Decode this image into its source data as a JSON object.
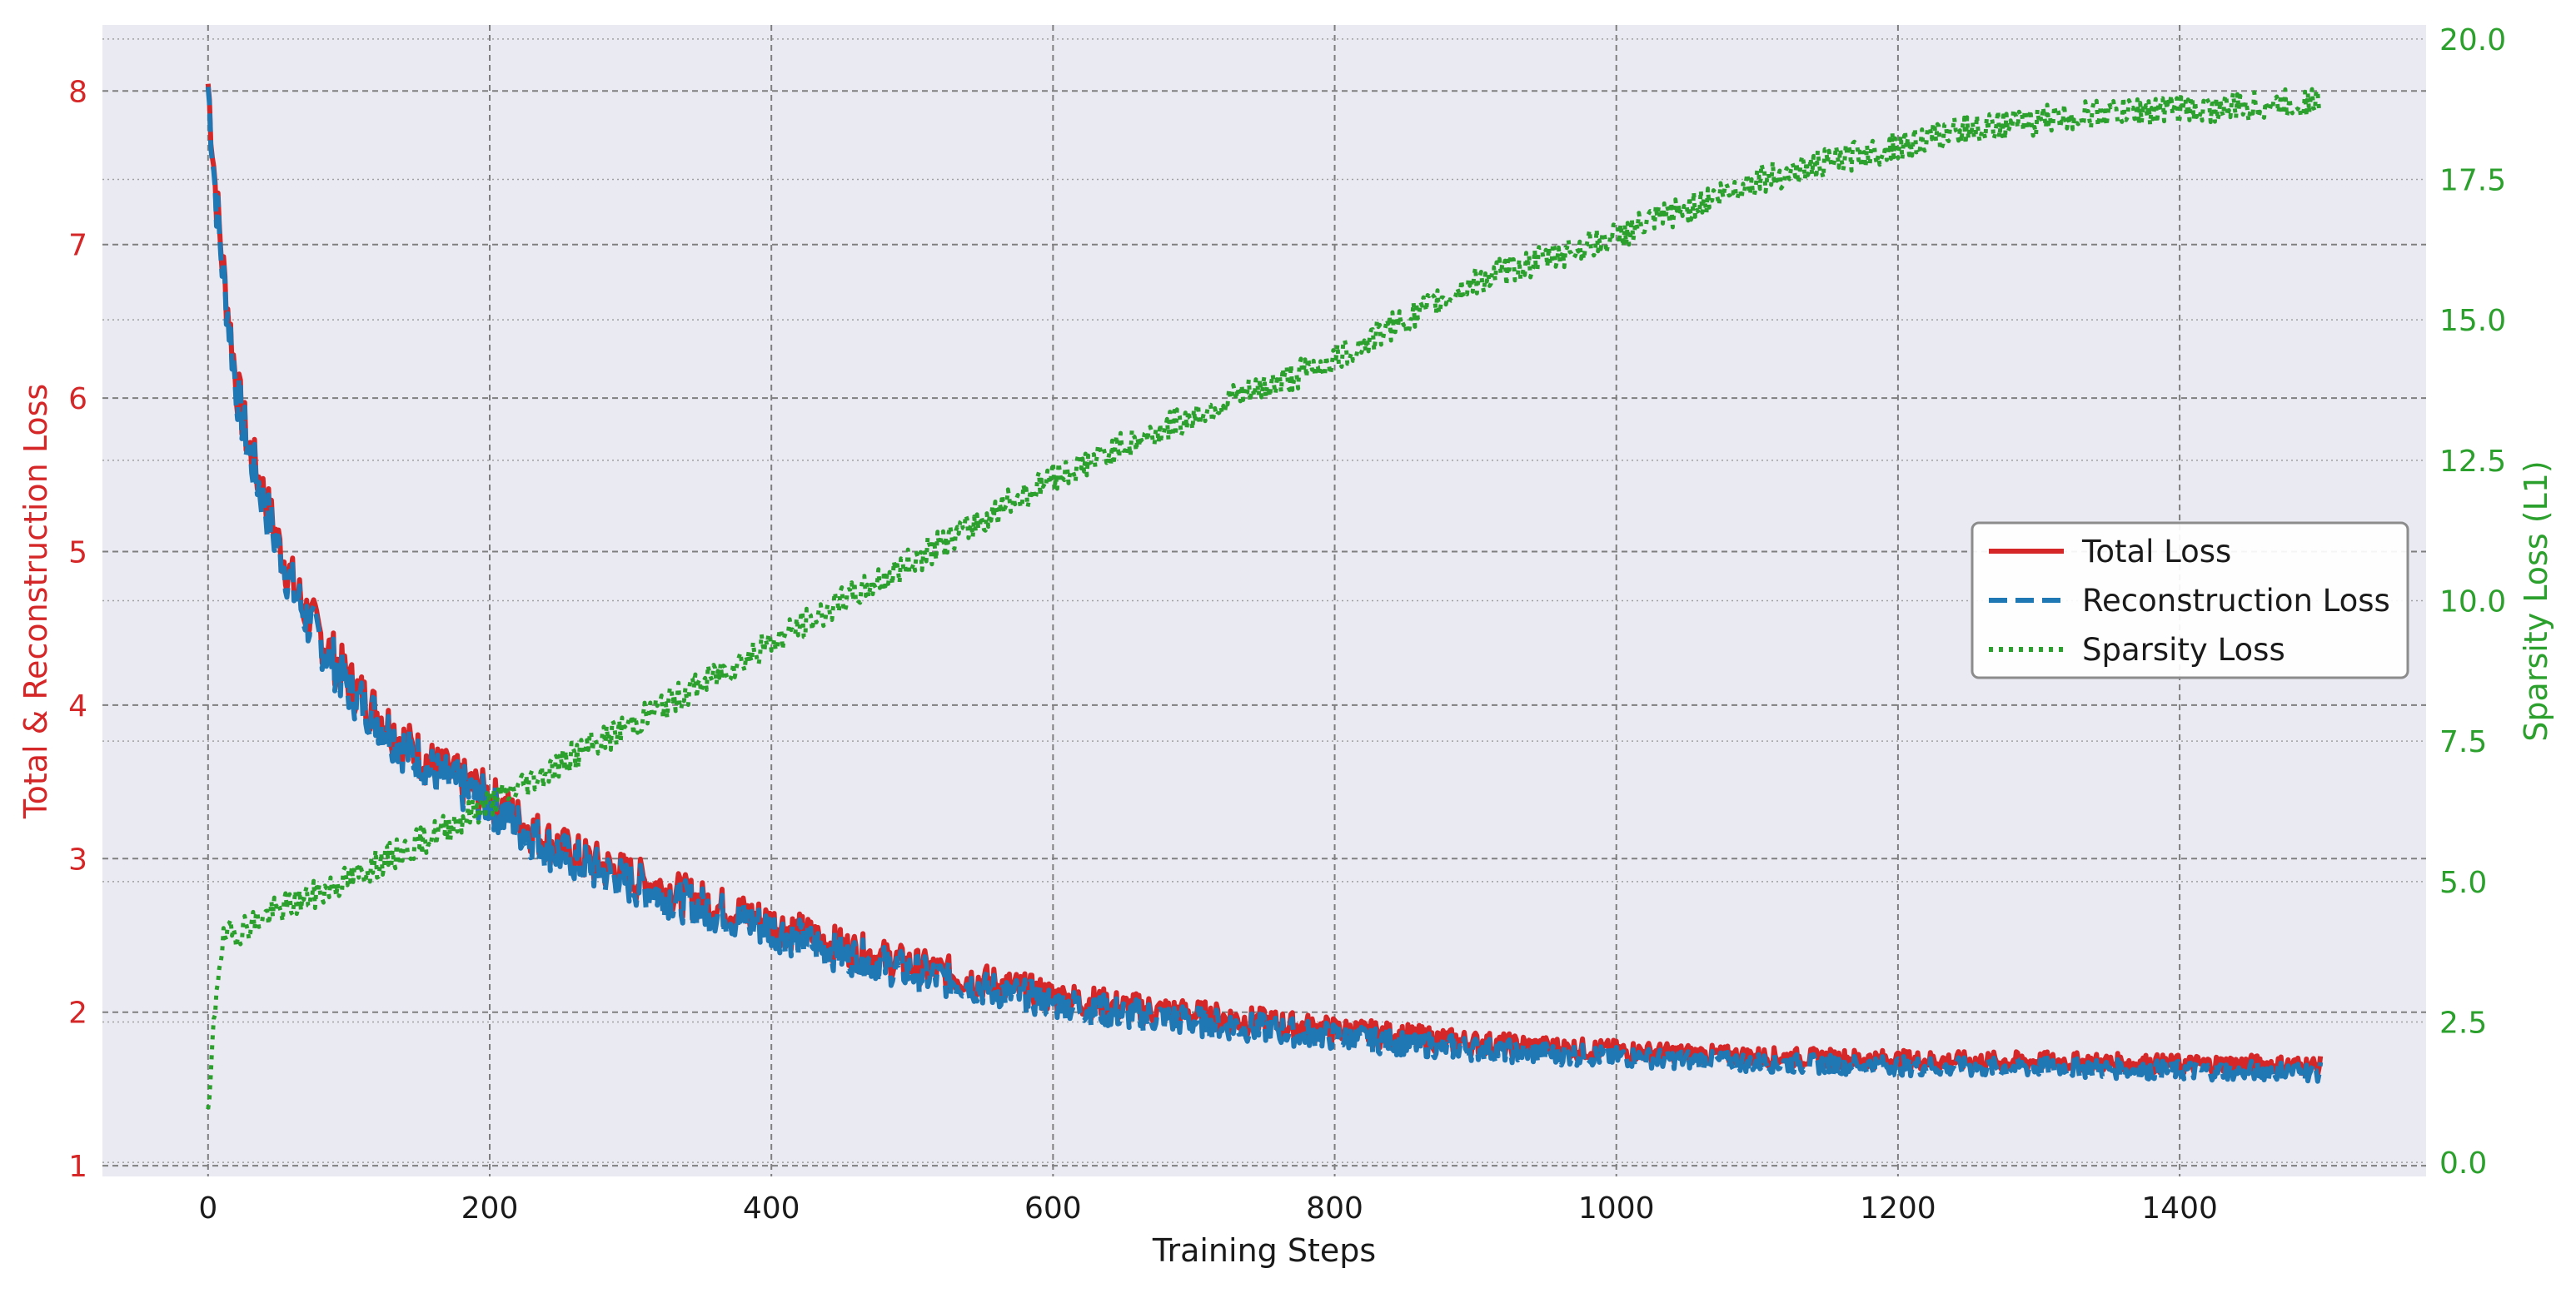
{
  "chart_data": {
    "type": "line",
    "xlabel": "Training Steps",
    "ylabel_left": "Total & Reconstruction Loss",
    "ylabel_right": "Sparsity Loss (L1)",
    "xlim": [
      -75,
      1575
    ],
    "ylim_left": [
      0.93,
      8.43
    ],
    "ylim_right": [
      -0.25,
      20.25
    ],
    "x_ticks": [
      0,
      200,
      400,
      600,
      800,
      1000,
      1200,
      1400
    ],
    "y_left_ticks": [
      1,
      2,
      3,
      4,
      5,
      6,
      7,
      8
    ],
    "y_right_ticks": [
      "0.0",
      "2.5",
      "5.0",
      "7.5",
      "10.0",
      "12.5",
      "15.0",
      "17.5",
      "20.0"
    ],
    "grid": true,
    "legend_position": "center-right",
    "left_axis_color": "#d62728",
    "right_axis_color": "#2ca02c",
    "series": [
      {
        "name": "Total Loss",
        "axis": "left",
        "color": "#d62728",
        "style": "solid",
        "x": [
          0,
          5,
          10,
          15,
          20,
          25,
          30,
          40,
          50,
          60,
          70,
          80,
          90,
          100,
          120,
          140,
          160,
          180,
          200,
          220,
          240,
          260,
          280,
          300,
          350,
          400,
          450,
          500,
          550,
          600,
          650,
          700,
          750,
          800,
          850,
          900,
          950,
          1000,
          1050,
          1100,
          1150,
          1200,
          1250,
          1300,
          1350,
          1400,
          1450,
          1500
        ],
        "values": [
          8.05,
          7.4,
          6.9,
          6.5,
          6.1,
          5.85,
          5.65,
          5.35,
          5.05,
          4.8,
          4.6,
          4.45,
          4.3,
          4.15,
          3.95,
          3.75,
          3.6,
          3.5,
          3.4,
          3.25,
          3.12,
          3.02,
          2.95,
          2.88,
          2.72,
          2.58,
          2.42,
          2.3,
          2.2,
          2.1,
          2.03,
          1.98,
          1.93,
          1.88,
          1.84,
          1.8,
          1.77,
          1.75,
          1.73,
          1.71,
          1.7,
          1.69,
          1.68,
          1.68,
          1.67,
          1.66,
          1.66,
          1.65
        ]
      },
      {
        "name": "Reconstruction Loss",
        "axis": "left",
        "color": "#1f77b4",
        "style": "dashed",
        "x": [
          0,
          5,
          10,
          15,
          20,
          25,
          30,
          40,
          50,
          60,
          70,
          80,
          90,
          100,
          120,
          140,
          160,
          180,
          200,
          220,
          240,
          260,
          280,
          300,
          350,
          400,
          450,
          500,
          550,
          600,
          650,
          700,
          750,
          800,
          850,
          900,
          950,
          1000,
          1050,
          1100,
          1150,
          1200,
          1250,
          1300,
          1350,
          1400,
          1450,
          1500
        ],
        "values": [
          8.03,
          7.37,
          6.87,
          6.47,
          6.07,
          5.82,
          5.62,
          5.31,
          5.01,
          4.76,
          4.56,
          4.41,
          4.26,
          4.11,
          3.91,
          3.71,
          3.56,
          3.46,
          3.36,
          3.21,
          3.08,
          2.98,
          2.91,
          2.84,
          2.68,
          2.54,
          2.38,
          2.26,
          2.16,
          2.06,
          1.99,
          1.94,
          1.89,
          1.84,
          1.8,
          1.76,
          1.73,
          1.71,
          1.69,
          1.67,
          1.66,
          1.65,
          1.64,
          1.64,
          1.63,
          1.62,
          1.62,
          1.61
        ]
      },
      {
        "name": "Sparsity Loss",
        "axis": "right",
        "color": "#2ca02c",
        "style": "dotted",
        "x": [
          0,
          2,
          4,
          6,
          8,
          10,
          12,
          15,
          20,
          30,
          50,
          75,
          100,
          150,
          200,
          250,
          300,
          400,
          500,
          600,
          700,
          800,
          900,
          1000,
          1050,
          1100,
          1150,
          1200,
          1250,
          1300,
          1350,
          1400,
          1450,
          1500
        ],
        "values": [
          0.7,
          1.5,
          2.4,
          3.1,
          3.6,
          3.85,
          4.0,
          4.05,
          4.1,
          4.25,
          4.5,
          4.75,
          5.05,
          5.7,
          6.4,
          7.1,
          7.8,
          9.25,
          10.7,
          12.2,
          13.3,
          14.3,
          15.7,
          16.5,
          17.0,
          17.5,
          17.8,
          18.1,
          18.4,
          18.55,
          18.7,
          18.75,
          18.8,
          18.9
        ]
      }
    ]
  }
}
